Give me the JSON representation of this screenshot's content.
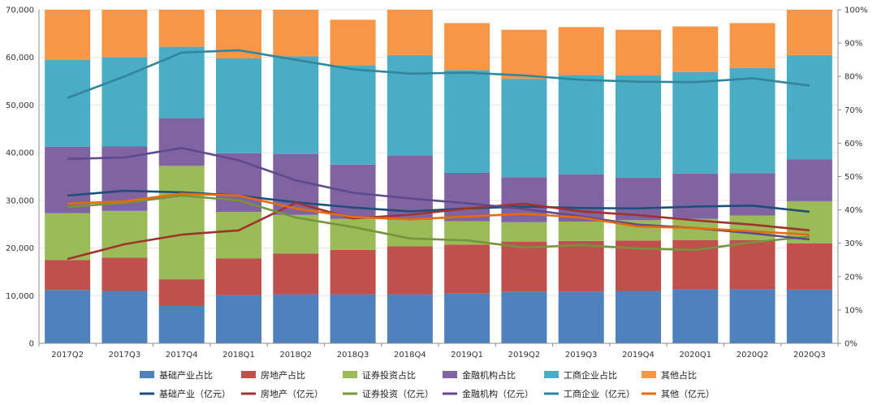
{
  "chart_data": {
    "type": "bar",
    "stacked": true,
    "categories": [
      "2017Q2",
      "2017Q3",
      "2017Q4",
      "2018Q1",
      "2018Q2",
      "2018Q3",
      "2018Q4",
      "2019Q1",
      "2019Q2",
      "2019Q3",
      "2019Q4",
      "2020Q1",
      "2020Q2",
      "2020Q3"
    ],
    "y_left": {
      "min": 0,
      "max": 70000,
      "step": 10000,
      "tick_labels": [
        "0",
        "10,000",
        "20,000",
        "30,000",
        "40,000",
        "50,000",
        "60,000",
        "70,000"
      ]
    },
    "y_right": {
      "min": 0,
      "max": 100,
      "step": 10,
      "tick_labels": [
        "0%",
        "10%",
        "20%",
        "30%",
        "40%",
        "50%",
        "60%",
        "70%",
        "80%",
        "90%",
        "100%"
      ]
    },
    "bar_series": [
      {
        "name": "基础产业占比",
        "color": "#4F81BD",
        "values": [
          16.0,
          15.7,
          11.2,
          14.4,
          14.7,
          14.7,
          14.7,
          14.9,
          15.4,
          15.5,
          15.7,
          16.2,
          16.2,
          16.1
        ]
      },
      {
        "name": "房地产占比",
        "color": "#C0504D",
        "values": [
          9.0,
          10.0,
          8.0,
          11.1,
          12.2,
          13.3,
          14.4,
          14.7,
          15.1,
          15.2,
          15.1,
          14.7,
          14.7,
          13.9
        ]
      },
      {
        "name": "证券投资占比",
        "color": "#9BBB59",
        "values": [
          14.0,
          14.0,
          34.0,
          13.9,
          11.6,
          9.3,
          7.9,
          7.0,
          5.8,
          5.8,
          6.1,
          6.4,
          7.4,
          12.6
        ]
      },
      {
        "name": "金融机构占比",
        "color": "#8064A2",
        "values": [
          19.9,
          19.3,
          14.3,
          17.6,
          18.2,
          16.3,
          19.3,
          14.5,
          13.5,
          14.2,
          12.8,
          13.6,
          12.7,
          12.6
        ]
      },
      {
        "name": "工商企业占比",
        "color": "#4BACC6",
        "values": [
          26.1,
          26.8,
          21.4,
          28.4,
          29.3,
          29.8,
          30.1,
          30.8,
          29.5,
          29.7,
          30.6,
          30.4,
          31.5,
          31.2
        ]
      },
      {
        "name": "其他占比",
        "color": "#F79646",
        "values": [
          15.0,
          14.2,
          11.1,
          14.6,
          14.0,
          13.6,
          13.6,
          14.1,
          14.7,
          14.4,
          13.7,
          13.7,
          13.5,
          13.6
        ]
      }
    ],
    "line_series": [
      {
        "name": "基础产业（亿元）",
        "color": "#1F4E79",
        "values": [
          31000,
          32000,
          31700,
          31000,
          29600,
          28500,
          27700,
          28300,
          28700,
          28400,
          28300,
          28700,
          28900,
          27600
        ]
      },
      {
        "name": "房地产（亿元）",
        "color": "#A0332B",
        "values": [
          17700,
          20800,
          22800,
          23700,
          29500,
          26200,
          27000,
          28300,
          29300,
          27700,
          26900,
          25800,
          24900,
          23700
        ]
      },
      {
        "name": "证券投资（亿元）",
        "color": "#77933C",
        "values": [
          28600,
          29500,
          31000,
          30000,
          26400,
          24400,
          22000,
          21600,
          20100,
          20600,
          19900,
          19600,
          21200,
          22400
        ]
      },
      {
        "name": "金融机构（亿元）",
        "color": "#5F4A8B",
        "values": [
          38700,
          39000,
          41000,
          38400,
          34200,
          31600,
          30400,
          29400,
          28200,
          26600,
          24900,
          24200,
          23100,
          21800
        ]
      },
      {
        "name": "工商企业（亿元）",
        "color": "#31859C",
        "values": [
          51500,
          56000,
          61000,
          61500,
          59500,
          57500,
          56600,
          56800,
          56200,
          55300,
          54900,
          54800,
          55600,
          54100
        ]
      },
      {
        "name": "其他（亿元）",
        "color": "#E46C0A",
        "values": [
          29300,
          29800,
          31400,
          31000,
          28300,
          26500,
          26000,
          26600,
          27200,
          26400,
          24500,
          24200,
          23500,
          22800
        ]
      }
    ],
    "title": "",
    "legend_position": "bottom"
  }
}
